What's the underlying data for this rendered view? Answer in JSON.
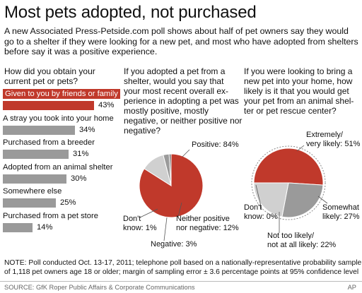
{
  "title": "Most pets adopted, not purchased",
  "intro": "A new Associated Press-Petside.com poll shows about half of pet owners say they would go to a shelter if they were looking for a new pet, and most who have adopted from shelters before say it was a positive experience.",
  "colors": {
    "accent": "#c0392b",
    "neutral": "#9a9a9a",
    "light": "#d0d0d0"
  },
  "questions": {
    "q1": "How did you obtain your current pet or pets?",
    "q2": "If you adopted a pet from a shelter, would you say that your most recent overall ex-perience in adopting a pet was mostly positive, mostly negative, or neither positive nor negative?",
    "q3": "If you were looking to bring a new pet into your home, how likely is it that you would get your pet from an animal shel-ter or pet rescue center?"
  },
  "bars_pct": [
    "43%",
    "34%",
    "31%",
    "30%",
    "25%",
    "14%"
  ],
  "pie1_labels": {
    "positive": "Positive: 84%",
    "dontknow1": "Don't",
    "dontknow2": "know: 1%",
    "neither1": "Neither positive",
    "neither2": "nor negative: 12%",
    "negative": "Negative: 3%"
  },
  "pie2_labels": {
    "extremely1": "Extremely/",
    "extremely2": "very likely: 51%",
    "somewhat1": "Somewhat",
    "somewhat2": "likely: 27%",
    "notlikely1": "Not too likely/",
    "notlikely2": "not at all likely: 22%",
    "dontknow1": "Don't",
    "dontknow2": "know: 0%"
  },
  "note": "NOTE: Poll conducted Oct. 13-17, 2011; telephone poll based on a nationally-representative probability sample of 1,118 pet owners age 18 or older; margin of sampling error ± 3.6 percentage points at 95% confidence level",
  "source": "SOURCE: GfK Roper Public Affairs & Corporate Communications",
  "credit": "AP",
  "chart_data": [
    {
      "type": "bar",
      "title": "How did you obtain your current pet or pets?",
      "categories": [
        "Given to you by friends or family",
        "A stray you took into your home",
        "Purchased from a breeder",
        "Adopted from an animal shelter",
        "Somewhere else",
        "Purchased from a pet store"
      ],
      "values": [
        43,
        34,
        31,
        30,
        25,
        14
      ],
      "highlight_index": 0,
      "xlim": [
        0,
        43
      ],
      "unit": "%"
    },
    {
      "type": "pie",
      "title": "If you adopted a pet from a shelter, would you say that your most recent overall ex-perience in adopting a pet was mostly positive, mostly negative, or neither positive nor negative?",
      "categories": [
        "Positive",
        "Neither positive nor negative",
        "Negative",
        "Don't know"
      ],
      "values": [
        84,
        12,
        3,
        1
      ],
      "unit": "%"
    },
    {
      "type": "pie",
      "title": "If you were looking to bring a new pet into your home, how likely is it that you would get your pet from an animal shel-ter or pet rescue center?",
      "categories": [
        "Extremely/very likely",
        "Somewhat likely",
        "Not too likely/not at all likely",
        "Don't know"
      ],
      "values": [
        51,
        27,
        22,
        0
      ],
      "unit": "%"
    }
  ]
}
